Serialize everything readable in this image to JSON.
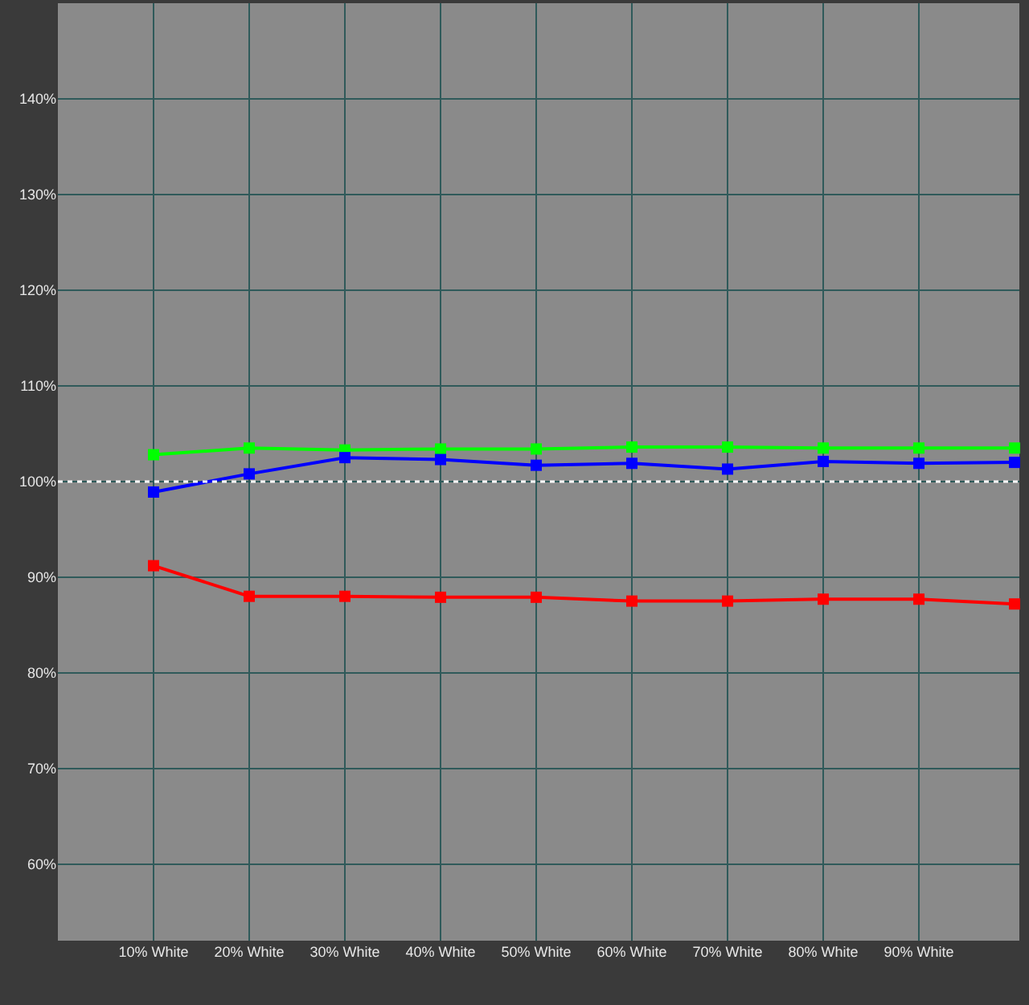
{
  "chart_data": {
    "type": "line",
    "categories": [
      "10% White",
      "20% White",
      "30% White",
      "40% White",
      "50% White",
      "60% White",
      "70% White",
      "80% White",
      "90% White",
      null
    ],
    "series": [
      {
        "color": "#00ff00",
        "values": [
          102.8,
          103.5,
          103.3,
          103.4,
          103.4,
          103.6,
          103.6,
          103.5,
          103.5,
          103.5
        ]
      },
      {
        "color": "#0000ff",
        "values": [
          98.9,
          100.8,
          102.5,
          102.3,
          101.7,
          101.9,
          101.3,
          102.1,
          101.9,
          102.0
        ]
      },
      {
        "color": "#ff0000",
        "values": [
          91.2,
          88.0,
          88.0,
          87.9,
          87.9,
          87.5,
          87.5,
          87.7,
          87.7,
          87.2
        ]
      }
    ],
    "ylim": [
      52,
      150
    ],
    "yticks": [
      {
        "value": 60,
        "label": "60%"
      },
      {
        "value": 70,
        "label": "70%"
      },
      {
        "value": 80,
        "label": "80%"
      },
      {
        "value": 90,
        "label": "90%"
      },
      {
        "value": 100,
        "label": "100%"
      },
      {
        "value": 110,
        "label": "110%"
      },
      {
        "value": 120,
        "label": "120%"
      },
      {
        "value": 130,
        "label": "130%"
      },
      {
        "value": 140,
        "label": "140%"
      }
    ],
    "ref_lines": [
      {
        "axis": "y",
        "value": 100,
        "label": null,
        "color": "#ffffff",
        "line_style": "dotted"
      }
    ],
    "grid": true,
    "legend": false,
    "marker": "square",
    "line_style": "solid"
  }
}
